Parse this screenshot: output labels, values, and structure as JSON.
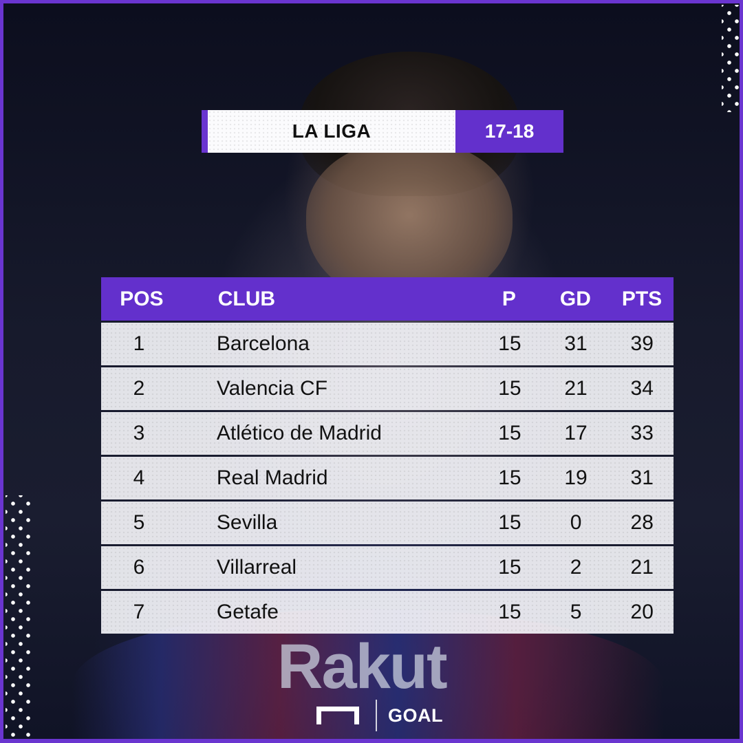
{
  "banner": {
    "league": "LA LIGA",
    "season": "17-18"
  },
  "table": {
    "headers": {
      "pos": "POS",
      "club": "CLUB",
      "played": "P",
      "goal_difference": "GD",
      "points": "PTS"
    },
    "rows": [
      {
        "pos": "1",
        "club": "Barcelona",
        "p": "15",
        "gd": "31",
        "pts": "39"
      },
      {
        "pos": "2",
        "club": "Valencia CF",
        "p": "15",
        "gd": "21",
        "pts": "34"
      },
      {
        "pos": "3",
        "club": "Atlético de Madrid",
        "p": "15",
        "gd": "17",
        "pts": "33"
      },
      {
        "pos": "4",
        "club": "Real Madrid",
        "p": "15",
        "gd": "19",
        "pts": "31"
      },
      {
        "pos": "5",
        "club": "Sevilla",
        "p": "15",
        "gd": "0",
        "pts": "28"
      },
      {
        "pos": "6",
        "club": "Villarreal",
        "p": "15",
        "gd": "2",
        "pts": "21"
      },
      {
        "pos": "7",
        "club": "Getafe",
        "p": "15",
        "gd": "5",
        "pts": "20"
      }
    ]
  },
  "background": {
    "sponsor_text": "Rakut"
  },
  "branding": {
    "logo_icon": "goal-frame-icon",
    "logo_text": "GOAL"
  },
  "colors": {
    "accent": "#6330cc",
    "frame": "#6a35d0",
    "background": "#0b0d1c",
    "row_background": "#f4f4f8",
    "text_dark": "#111111",
    "text_light": "#ffffff"
  }
}
